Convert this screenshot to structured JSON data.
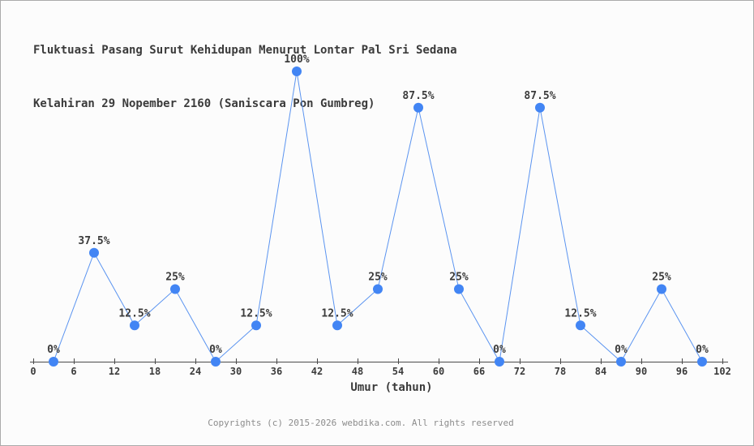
{
  "page": {
    "title_line1": "Fluktuasi Pasang Surut Kehidupan Menurut Lontar Pal Sri Sedana",
    "title_line2": "Kelahiran 29 Nopember 2160 (Saniscara Pon Gumbreg)"
  },
  "chart_data": {
    "type": "line",
    "title": "Fluktuasi Pasang Surut Kehidupan Menurut Lontar Pal Sri Sedana Kelahiran 29 Nopember 2160 (Saniscara Pon Gumbreg)",
    "xlabel": "Umur (tahun)",
    "ylabel": "",
    "x": [
      3,
      9,
      15,
      21,
      27,
      33,
      39,
      45,
      51,
      57,
      63,
      69,
      75,
      81,
      87,
      93,
      99
    ],
    "values": [
      0,
      37.5,
      12.5,
      25,
      0,
      12.5,
      100,
      12.5,
      25,
      87.5,
      25,
      0,
      87.5,
      12.5,
      0,
      25,
      0
    ],
    "point_labels": [
      "0%",
      "37.5%",
      "12.5%",
      "25%",
      "0%",
      "12.5%",
      "100%",
      "12.5%",
      "25%",
      "87.5%",
      "25%",
      "0%",
      "87.5%",
      "12.5%",
      "0%",
      "25%",
      "0%"
    ],
    "xticks": [
      0,
      6,
      12,
      18,
      24,
      30,
      36,
      42,
      48,
      54,
      60,
      66,
      72,
      78,
      84,
      90,
      96,
      102
    ],
    "xlim": [
      0,
      102
    ],
    "ylim": [
      0,
      100
    ],
    "grid": false,
    "legend": null,
    "colors": {
      "line": "#5b94f0",
      "marker": "#4285f4",
      "axis": "#4a4a4a",
      "text": "#3b3b3b"
    }
  },
  "footer": {
    "copyright": "Copyrights (c) 2015-2026 webdika.com. All rights reserved"
  }
}
